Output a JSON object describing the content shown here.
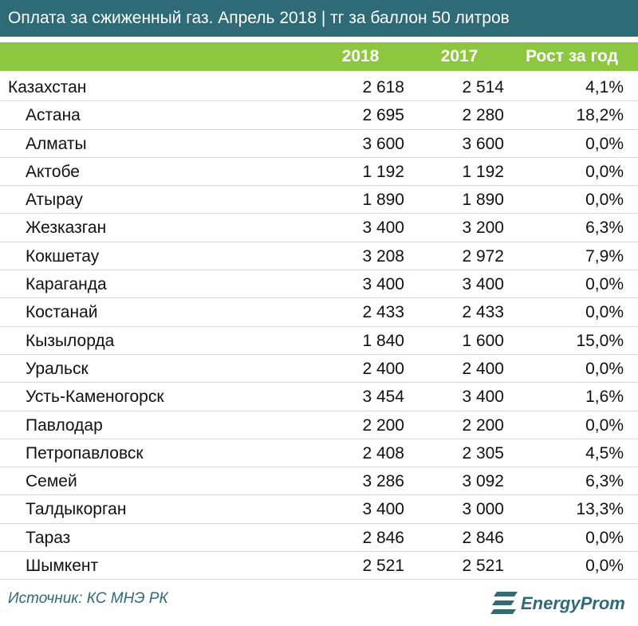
{
  "header": {
    "title": "Оплата за сжиженный газ. Апрель 2018 | тг за баллон 50 литров"
  },
  "table": {
    "columns": [
      "2018",
      "2017",
      "Рост за год"
    ],
    "rows": [
      [
        "Казахстан",
        "2 618",
        "2 514",
        "4,1%"
      ],
      [
        "Астана",
        "2 695",
        "2 280",
        "18,2%"
      ],
      [
        "Алматы",
        "3 600",
        "3 600",
        "0,0%"
      ],
      [
        "Актобе",
        "1 192",
        "1 192",
        "0,0%"
      ],
      [
        "Атырау",
        "1 890",
        "1 890",
        "0,0%"
      ],
      [
        "Жезказган",
        "3 400",
        "3 200",
        "6,3%"
      ],
      [
        "Кокшетау",
        "3 208",
        "2 972",
        "7,9%"
      ],
      [
        "Караганда",
        "3 400",
        "3 400",
        "0,0%"
      ],
      [
        "Костанай",
        "2 433",
        "2 433",
        "0,0%"
      ],
      [
        "Кызылорда",
        "1 840",
        "1 600",
        "15,0%"
      ],
      [
        "Уральск",
        "2 400",
        "2 400",
        "0,0%"
      ],
      [
        "Усть-Каменогорск",
        "3 454",
        "3 400",
        "1,6%"
      ],
      [
        "Павлодар",
        "2 200",
        "2 200",
        "0,0%"
      ],
      [
        "Петропавловск",
        "2 408",
        "2 305",
        "4,5%"
      ],
      [
        "Семей",
        "3 286",
        "3 092",
        "6,3%"
      ],
      [
        "Талдыкорган",
        "3 400",
        "3 000",
        "13,3%"
      ],
      [
        "Тараз",
        "2 846",
        "2 846",
        "0,0%"
      ],
      [
        "Шымкент",
        "2 521",
        "2 521",
        "0,0%"
      ]
    ]
  },
  "footer": {
    "source": "Источник: КС МНЭ РК",
    "logo": "EnergyProm"
  }
}
